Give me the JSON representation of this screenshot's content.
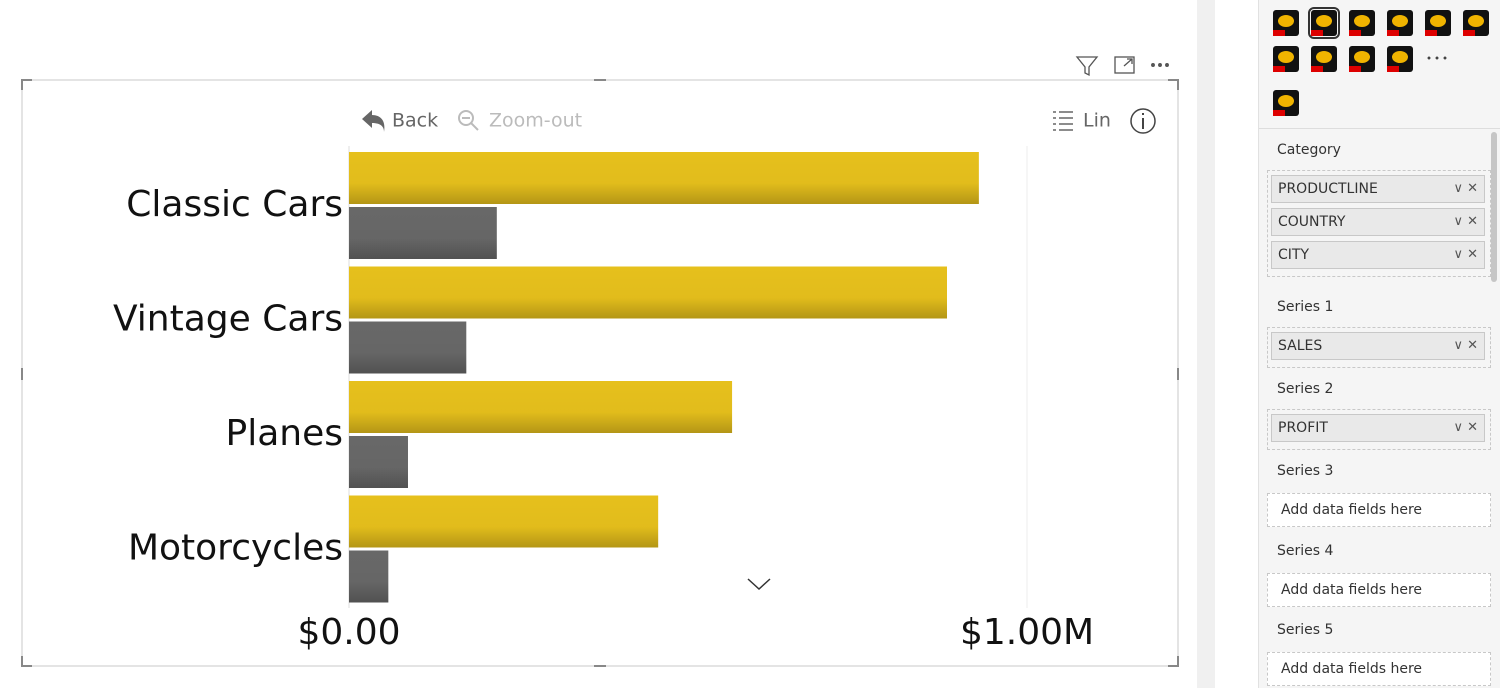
{
  "chart_data": {
    "type": "bar",
    "orientation": "horizontal",
    "categories": [
      "Classic Cars",
      "Vintage Cars",
      "Planes",
      "Motorcycles"
    ],
    "series": [
      {
        "color": "#e6c01c",
        "values": [
          929000,
          882000,
          565000,
          456000
        ]
      },
      {
        "color": "#686868",
        "values": [
          218000,
          173000,
          87000,
          58000
        ]
      }
    ],
    "xlim": [
      0,
      1000000
    ],
    "xticks": [
      {
        "value": 0,
        "label": "$0.00"
      },
      {
        "value": 1000000,
        "label": "$1.00M"
      }
    ],
    "grid": true
  },
  "toolbar": {
    "back": "Back",
    "zoom_out": "Zoom-out",
    "scale": "Lin"
  },
  "pane": {
    "sections": [
      {
        "label": "Category",
        "fields": [
          "PRODUCTLINE",
          "COUNTRY",
          "CITY"
        ]
      },
      {
        "label": "Series 1",
        "fields": [
          "SALES"
        ]
      },
      {
        "label": "Series 2",
        "fields": [
          "PROFIT"
        ]
      },
      {
        "label": "Series 3",
        "placeholder": "Add data fields here"
      },
      {
        "label": "Series 4",
        "placeholder": "Add data fields here"
      },
      {
        "label": "Series 5",
        "placeholder": "Add data fields here"
      }
    ]
  }
}
